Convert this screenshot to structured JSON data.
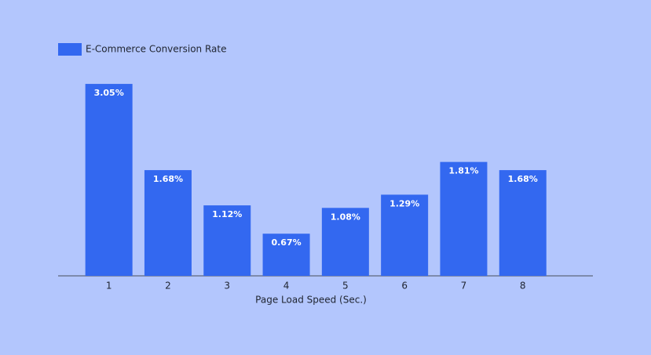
{
  "chart_data": {
    "type": "bar",
    "x_label": "Page Load Speed (Sec.)",
    "categories": [
      "1",
      "2",
      "3",
      "4",
      "5",
      "6",
      "7",
      "8"
    ],
    "series": [
      {
        "name": "E-Commerce Conversion Rate",
        "color": "#3368f0",
        "values": [
          3.05,
          1.68,
          1.12,
          0.67,
          1.08,
          1.29,
          1.81,
          1.68
        ],
        "value_labels": [
          "3.05%",
          "1.68%",
          "1.12%",
          "0.67%",
          "1.08%",
          "1.29%",
          "1.81%",
          "1.68%"
        ]
      }
    ],
    "ylim": [
      0,
      3.3
    ]
  }
}
